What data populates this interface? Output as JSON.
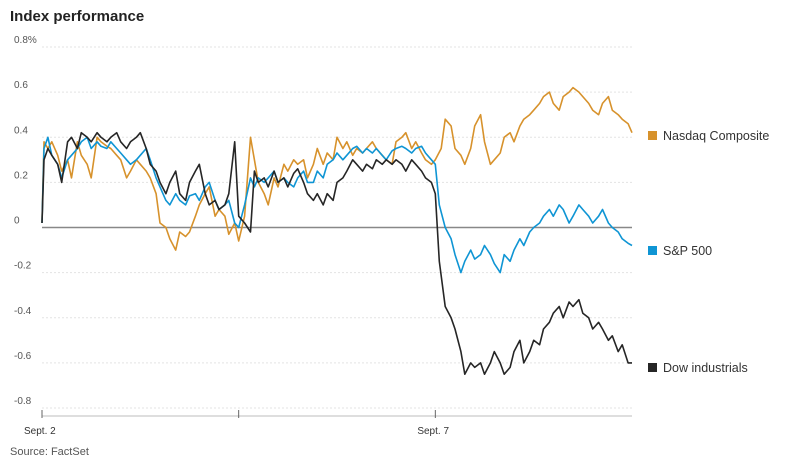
{
  "title": "Index performance",
  "source": "Source: FactSet",
  "chart_data": {
    "type": "line",
    "title": "Index performance",
    "ylabel": "",
    "xlabel": "",
    "ylim": [
      -0.8,
      0.8
    ],
    "yticks": [
      {
        "value": 0.8,
        "label": "0.8%"
      },
      {
        "value": 0.6,
        "label": "0.6"
      },
      {
        "value": 0.4,
        "label": "0.4"
      },
      {
        "value": 0.2,
        "label": "0.2"
      },
      {
        "value": 0,
        "label": "0"
      },
      {
        "value": -0.2,
        "label": "-0.2"
      },
      {
        "value": -0.4,
        "label": "-0.4"
      },
      {
        "value": -0.6,
        "label": "-0.6"
      },
      {
        "value": -0.8,
        "label": "-0.8"
      }
    ],
    "xlim": [
      0,
      3
    ],
    "xticks": [
      {
        "value": 0,
        "label": "Sept. 2"
      },
      {
        "value": 1,
        "label": ""
      },
      {
        "value": 2,
        "label": "Sept. 7"
      }
    ],
    "grid": true,
    "legend_placement": "right, beside line ends",
    "series": [
      {
        "name": "Nasdaq Composite",
        "color": "#d7922c",
        "x": [
          0.0,
          0.01,
          0.03,
          0.05,
          0.08,
          0.1,
          0.13,
          0.15,
          0.18,
          0.2,
          0.23,
          0.25,
          0.28,
          0.3,
          0.33,
          0.35,
          0.38,
          0.4,
          0.43,
          0.45,
          0.48,
          0.5,
          0.53,
          0.55,
          0.58,
          0.6,
          0.63,
          0.65,
          0.68,
          0.7,
          0.73,
          0.75,
          0.78,
          0.8,
          0.83,
          0.85,
          0.88,
          0.9,
          0.93,
          0.95,
          0.98,
          1.0,
          1.03,
          1.06,
          1.08,
          1.1,
          1.13,
          1.15,
          1.18,
          1.2,
          1.23,
          1.25,
          1.28,
          1.3,
          1.33,
          1.35,
          1.38,
          1.4,
          1.43,
          1.45,
          1.48,
          1.5,
          1.53,
          1.55,
          1.58,
          1.6,
          1.63,
          1.65,
          1.68,
          1.7,
          1.73,
          1.75,
          1.78,
          1.8,
          1.83,
          1.85,
          1.88,
          1.9,
          1.93,
          1.95,
          1.98,
          2.0,
          2.03,
          2.05,
          2.08,
          2.1,
          2.13,
          2.15,
          2.18,
          2.2,
          2.23,
          2.25,
          2.28,
          2.3,
          2.33,
          2.35,
          2.38,
          2.4,
          2.43,
          2.45,
          2.48,
          2.5,
          2.53,
          2.55,
          2.58,
          2.6,
          2.63,
          2.65,
          2.68,
          2.7,
          2.73,
          2.75,
          2.78,
          2.8,
          2.83,
          2.85,
          2.88,
          2.9,
          2.93,
          2.95,
          2.98,
          3.0
        ],
        "values": [
          0.02,
          0.38,
          0.35,
          0.38,
          0.32,
          0.25,
          0.3,
          0.22,
          0.38,
          0.32,
          0.28,
          0.22,
          0.4,
          0.38,
          0.36,
          0.35,
          0.32,
          0.3,
          0.22,
          0.25,
          0.3,
          0.28,
          0.25,
          0.22,
          0.15,
          0.02,
          0.0,
          -0.05,
          -0.1,
          -0.02,
          -0.04,
          -0.02,
          0.05,
          0.1,
          0.15,
          0.18,
          0.05,
          0.08,
          0.05,
          -0.03,
          0.02,
          -0.06,
          0.05,
          0.4,
          0.3,
          0.2,
          0.15,
          0.1,
          0.22,
          0.18,
          0.28,
          0.25,
          0.3,
          0.28,
          0.3,
          0.22,
          0.28,
          0.35,
          0.28,
          0.33,
          0.3,
          0.4,
          0.35,
          0.38,
          0.32,
          0.35,
          0.33,
          0.35,
          0.38,
          0.35,
          0.32,
          0.3,
          0.28,
          0.38,
          0.4,
          0.42,
          0.35,
          0.38,
          0.33,
          0.3,
          0.28,
          0.3,
          0.35,
          0.48,
          0.45,
          0.35,
          0.32,
          0.28,
          0.35,
          0.45,
          0.5,
          0.38,
          0.28,
          0.3,
          0.33,
          0.4,
          0.42,
          0.38,
          0.45,
          0.48,
          0.5,
          0.52,
          0.55,
          0.58,
          0.6,
          0.55,
          0.52,
          0.58,
          0.6,
          0.62,
          0.6,
          0.58,
          0.55,
          0.52,
          0.5,
          0.55,
          0.58,
          0.52,
          0.5,
          0.48,
          0.46,
          0.42
        ]
      },
      {
        "name": "S&P 500",
        "color": "#0f95d4",
        "x": [
          0.0,
          0.01,
          0.03,
          0.05,
          0.08,
          0.1,
          0.13,
          0.15,
          0.18,
          0.2,
          0.23,
          0.25,
          0.28,
          0.3,
          0.33,
          0.35,
          0.38,
          0.4,
          0.43,
          0.45,
          0.48,
          0.5,
          0.53,
          0.55,
          0.58,
          0.6,
          0.63,
          0.65,
          0.68,
          0.7,
          0.73,
          0.75,
          0.78,
          0.8,
          0.83,
          0.85,
          0.88,
          0.9,
          0.93,
          0.95,
          0.98,
          1.0,
          1.03,
          1.06,
          1.08,
          1.1,
          1.13,
          1.15,
          1.18,
          1.2,
          1.23,
          1.25,
          1.28,
          1.3,
          1.33,
          1.35,
          1.38,
          1.4,
          1.43,
          1.45,
          1.48,
          1.5,
          1.53,
          1.55,
          1.58,
          1.6,
          1.63,
          1.65,
          1.68,
          1.7,
          1.73,
          1.75,
          1.78,
          1.8,
          1.83,
          1.85,
          1.88,
          1.9,
          1.93,
          1.95,
          1.98,
          2.0,
          2.02,
          2.05,
          2.08,
          2.1,
          2.13,
          2.15,
          2.18,
          2.2,
          2.23,
          2.25,
          2.28,
          2.3,
          2.33,
          2.35,
          2.38,
          2.4,
          2.43,
          2.45,
          2.48,
          2.5,
          2.53,
          2.55,
          2.58,
          2.6,
          2.63,
          2.65,
          2.68,
          2.7,
          2.73,
          2.75,
          2.78,
          2.8,
          2.83,
          2.85,
          2.88,
          2.9,
          2.93,
          2.95,
          2.98,
          3.0
        ],
        "values": [
          0.02,
          0.35,
          0.4,
          0.32,
          0.28,
          0.22,
          0.3,
          0.32,
          0.35,
          0.38,
          0.4,
          0.35,
          0.38,
          0.36,
          0.35,
          0.38,
          0.35,
          0.33,
          0.3,
          0.28,
          0.3,
          0.32,
          0.35,
          0.3,
          0.22,
          0.18,
          0.12,
          0.1,
          0.15,
          0.12,
          0.1,
          0.14,
          0.15,
          0.12,
          0.18,
          0.2,
          0.12,
          0.08,
          0.1,
          0.12,
          0.02,
          0.0,
          0.1,
          0.22,
          0.18,
          0.22,
          0.2,
          0.22,
          0.25,
          0.2,
          0.22,
          0.2,
          0.18,
          0.22,
          0.25,
          0.2,
          0.2,
          0.25,
          0.22,
          0.28,
          0.3,
          0.33,
          0.3,
          0.32,
          0.35,
          0.36,
          0.33,
          0.35,
          0.33,
          0.35,
          0.32,
          0.3,
          0.34,
          0.35,
          0.36,
          0.35,
          0.33,
          0.35,
          0.36,
          0.33,
          0.3,
          0.28,
          0.1,
          0.0,
          -0.05,
          -0.12,
          -0.2,
          -0.15,
          -0.1,
          -0.14,
          -0.12,
          -0.08,
          -0.12,
          -0.16,
          -0.2,
          -0.12,
          -0.15,
          -0.1,
          -0.05,
          -0.08,
          -0.02,
          0.0,
          0.02,
          0.05,
          0.08,
          0.05,
          0.1,
          0.08,
          0.02,
          0.05,
          0.1,
          0.08,
          0.05,
          0.02,
          0.05,
          0.08,
          0.02,
          0.0,
          -0.02,
          -0.05,
          -0.07,
          -0.08
        ]
      },
      {
        "name": "Dow industrials",
        "color": "#262626",
        "x": [
          0.0,
          0.01,
          0.03,
          0.05,
          0.08,
          0.1,
          0.13,
          0.15,
          0.18,
          0.2,
          0.23,
          0.25,
          0.28,
          0.3,
          0.33,
          0.35,
          0.38,
          0.4,
          0.43,
          0.45,
          0.48,
          0.5,
          0.53,
          0.55,
          0.58,
          0.6,
          0.63,
          0.65,
          0.68,
          0.7,
          0.73,
          0.75,
          0.78,
          0.8,
          0.83,
          0.85,
          0.88,
          0.9,
          0.93,
          0.95,
          0.98,
          1.0,
          1.03,
          1.06,
          1.08,
          1.1,
          1.13,
          1.15,
          1.18,
          1.2,
          1.23,
          1.25,
          1.28,
          1.3,
          1.33,
          1.35,
          1.38,
          1.4,
          1.43,
          1.45,
          1.48,
          1.5,
          1.53,
          1.55,
          1.58,
          1.6,
          1.63,
          1.65,
          1.68,
          1.7,
          1.73,
          1.75,
          1.78,
          1.8,
          1.83,
          1.85,
          1.88,
          1.9,
          1.93,
          1.95,
          1.98,
          2.0,
          2.02,
          2.05,
          2.08,
          2.1,
          2.13,
          2.15,
          2.18,
          2.2,
          2.23,
          2.25,
          2.28,
          2.3,
          2.33,
          2.35,
          2.38,
          2.4,
          2.43,
          2.45,
          2.48,
          2.5,
          2.53,
          2.55,
          2.58,
          2.6,
          2.63,
          2.65,
          2.68,
          2.7,
          2.73,
          2.75,
          2.78,
          2.8,
          2.83,
          2.85,
          2.88,
          2.9,
          2.93,
          2.95,
          2.98,
          3.0
        ],
        "values": [
          0.02,
          0.3,
          0.35,
          0.32,
          0.28,
          0.2,
          0.38,
          0.4,
          0.35,
          0.42,
          0.4,
          0.38,
          0.42,
          0.4,
          0.38,
          0.4,
          0.42,
          0.38,
          0.35,
          0.38,
          0.4,
          0.42,
          0.35,
          0.28,
          0.25,
          0.2,
          0.15,
          0.2,
          0.25,
          0.15,
          0.12,
          0.2,
          0.25,
          0.28,
          0.15,
          0.1,
          0.12,
          0.08,
          0.1,
          0.15,
          0.38,
          0.05,
          0.02,
          -0.02,
          0.25,
          0.2,
          0.22,
          0.18,
          0.25,
          0.2,
          0.22,
          0.18,
          0.24,
          0.26,
          0.2,
          0.15,
          0.12,
          0.15,
          0.1,
          0.15,
          0.12,
          0.2,
          0.22,
          0.25,
          0.3,
          0.28,
          0.25,
          0.28,
          0.26,
          0.3,
          0.28,
          0.3,
          0.28,
          0.3,
          0.28,
          0.25,
          0.3,
          0.28,
          0.25,
          0.22,
          0.2,
          0.15,
          -0.15,
          -0.35,
          -0.4,
          -0.45,
          -0.55,
          -0.65,
          -0.6,
          -0.62,
          -0.6,
          -0.65,
          -0.6,
          -0.55,
          -0.6,
          -0.65,
          -0.62,
          -0.55,
          -0.5,
          -0.6,
          -0.55,
          -0.5,
          -0.52,
          -0.45,
          -0.42,
          -0.38,
          -0.35,
          -0.4,
          -0.33,
          -0.35,
          -0.32,
          -0.38,
          -0.4,
          -0.45,
          -0.42,
          -0.45,
          -0.5,
          -0.48,
          -0.55,
          -0.52,
          -0.6,
          -0.6
        ]
      }
    ]
  }
}
